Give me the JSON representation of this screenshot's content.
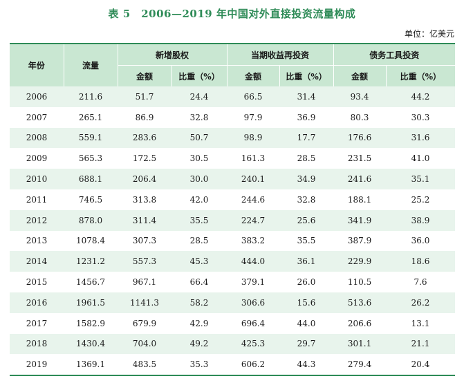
{
  "title": "表 5　2006—2019 年中国对外直接投资流量构成",
  "unit": "单位：亿美元",
  "headers": {
    "year": "年份",
    "flow": "流量",
    "groups": [
      "新增股权",
      "当期收益再投资",
      "债务工具投资"
    ],
    "amount": "金额",
    "ratio": "比重（%）"
  },
  "rows": [
    {
      "year": "2006",
      "flow": "211.6",
      "eq_amt": "51.7",
      "eq_pct": "24.4",
      "re_amt": "66.5",
      "re_pct": "31.4",
      "debt_amt": "93.4",
      "debt_pct": "44.2"
    },
    {
      "year": "2007",
      "flow": "265.1",
      "eq_amt": "86.9",
      "eq_pct": "32.8",
      "re_amt": "97.9",
      "re_pct": "36.9",
      "debt_amt": "80.3",
      "debt_pct": "30.3"
    },
    {
      "year": "2008",
      "flow": "559.1",
      "eq_amt": "283.6",
      "eq_pct": "50.7",
      "re_amt": "98.9",
      "re_pct": "17.7",
      "debt_amt": "176.6",
      "debt_pct": "31.6"
    },
    {
      "year": "2009",
      "flow": "565.3",
      "eq_amt": "172.5",
      "eq_pct": "30.5",
      "re_amt": "161.3",
      "re_pct": "28.5",
      "debt_amt": "231.5",
      "debt_pct": "41.0"
    },
    {
      "year": "2010",
      "flow": "688.1",
      "eq_amt": "206.4",
      "eq_pct": "30.0",
      "re_amt": "240.1",
      "re_pct": "34.9",
      "debt_amt": "241.6",
      "debt_pct": "35.1"
    },
    {
      "year": "2011",
      "flow": "746.5",
      "eq_amt": "313.8",
      "eq_pct": "42.0",
      "re_amt": "244.6",
      "re_pct": "32.8",
      "debt_amt": "188.1",
      "debt_pct": "25.2"
    },
    {
      "year": "2012",
      "flow": "878.0",
      "eq_amt": "311.4",
      "eq_pct": "35.5",
      "re_amt": "224.7",
      "re_pct": "25.6",
      "debt_amt": "341.9",
      "debt_pct": "38.9"
    },
    {
      "year": "2013",
      "flow": "1078.4",
      "eq_amt": "307.3",
      "eq_pct": "28.5",
      "re_amt": "383.2",
      "re_pct": "35.5",
      "debt_amt": "387.9",
      "debt_pct": "36.0"
    },
    {
      "year": "2014",
      "flow": "1231.2",
      "eq_amt": "557.3",
      "eq_pct": "45.3",
      "re_amt": "444.0",
      "re_pct": "36.1",
      "debt_amt": "229.9",
      "debt_pct": "18.6"
    },
    {
      "year": "2015",
      "flow": "1456.7",
      "eq_amt": "967.1",
      "eq_pct": "66.4",
      "re_amt": "379.1",
      "re_pct": "26.0",
      "debt_amt": "110.5",
      "debt_pct": "7.6"
    },
    {
      "year": "2016",
      "flow": "1961.5",
      "eq_amt": "1141.3",
      "eq_pct": "58.2",
      "re_amt": "306.6",
      "re_pct": "15.6",
      "debt_amt": "513.6",
      "debt_pct": "26.2"
    },
    {
      "year": "2017",
      "flow": "1582.9",
      "eq_amt": "679.9",
      "eq_pct": "42.9",
      "re_amt": "696.4",
      "re_pct": "44.0",
      "debt_amt": "206.6",
      "debt_pct": "13.1"
    },
    {
      "year": "2018",
      "flow": "1430.4",
      "eq_amt": "704.0",
      "eq_pct": "49.2",
      "re_amt": "425.3",
      "re_pct": "29.7",
      "debt_amt": "301.1",
      "debt_pct": "21.1"
    },
    {
      "year": "2019",
      "flow": "1369.1",
      "eq_amt": "483.5",
      "eq_pct": "35.3",
      "re_amt": "606.2",
      "re_pct": "44.3",
      "debt_amt": "279.4",
      "debt_pct": "20.4"
    }
  ],
  "colors": {
    "title": "#2e8b57",
    "header_bg": "#c9e7d2",
    "stripe_bg": "#e8f4ec",
    "rule": "#2e8b57"
  }
}
